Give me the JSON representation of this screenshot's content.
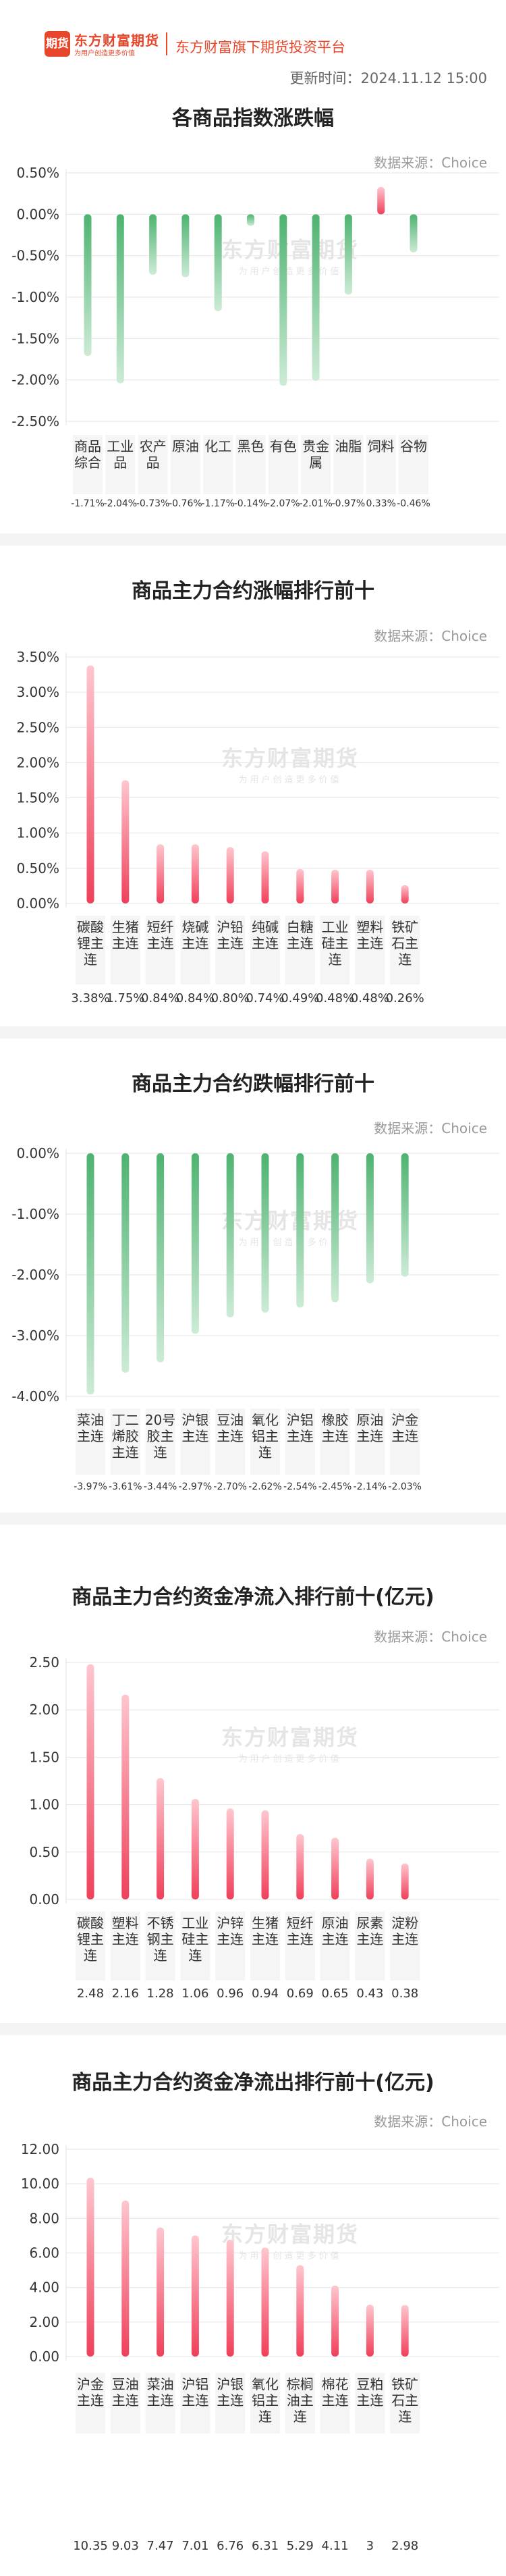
{
  "header": {
    "logo_mark": "期货",
    "logo_name": "东方财富期货",
    "logo_slogan": "为用户创造更多价值",
    "platform": "东方财富旗下期货投资平台",
    "update_time": "更新时间：2024.11.12 15:00"
  },
  "watermark": {
    "name": "东方财富期货",
    "slogan": "为用户创造更多价值"
  },
  "colors": {
    "brand": "#e8462a",
    "up": "#f0405a",
    "down": "#4db370",
    "grid": "#e6e6e6",
    "divider": "#f4f4f4"
  },
  "sections": [
    {
      "title": "各商品指数涨跌幅",
      "source": "数据来源：Choice"
    },
    {
      "title": "商品主力合约涨幅排行前十",
      "source": "数据来源：Choice"
    },
    {
      "title": "商品主力合约跌幅排行前十",
      "source": "数据来源：Choice"
    },
    {
      "title": "商品主力合约资金净流入排行前十(亿元)",
      "source": "数据来源：Choice"
    },
    {
      "title": "商品主力合约资金净流出排行前十(亿元)",
      "source": "数据来源：Choice"
    }
  ],
  "chart_data": [
    {
      "type": "bar",
      "title": "各商品指数涨跌幅",
      "categories": [
        [
          "商品",
          "综合"
        ],
        [
          "工业",
          "品"
        ],
        [
          "农产",
          "品"
        ],
        [
          "原油"
        ],
        [
          "化工"
        ],
        [
          "黑色"
        ],
        [
          "有色"
        ],
        [
          "贵金",
          "属"
        ],
        [
          "油脂"
        ],
        [
          "饲料"
        ],
        [
          "谷物"
        ]
      ],
      "values": [
        -1.71,
        -2.04,
        -0.73,
        -0.76,
        -1.17,
        -0.14,
        -2.07,
        -2.01,
        -0.97,
        0.33,
        -0.46
      ],
      "value_labels": [
        "-1.71%",
        "-2.04%",
        "-0.73%",
        "-0.76%",
        "-1.17%",
        "-0.14%",
        "-2.07%",
        "-2.01%",
        "-0.97%",
        "0.33%",
        "-0.46%"
      ],
      "yticks": [
        "0.50%",
        "0.00%",
        "-0.50%",
        "-1.00%",
        "-1.50%",
        "-2.00%",
        "-2.50%"
      ],
      "ylim": [
        -2.5,
        0.5
      ],
      "grid": true
    },
    {
      "type": "bar",
      "title": "商品主力合约涨幅排行前十",
      "categories": [
        [
          "碳酸",
          "锂主",
          "连"
        ],
        [
          "生猪",
          "主连"
        ],
        [
          "短纤",
          "主连"
        ],
        [
          "烧碱",
          "主连"
        ],
        [
          "沪铅",
          "主连"
        ],
        [
          "纯碱",
          "主连"
        ],
        [
          "白糖",
          "主连"
        ],
        [
          "工业",
          "硅主",
          "连"
        ],
        [
          "塑料",
          "主连"
        ],
        [
          "铁矿",
          "石主",
          "连"
        ]
      ],
      "values": [
        3.38,
        1.75,
        0.84,
        0.84,
        0.8,
        0.74,
        0.49,
        0.48,
        0.48,
        0.26
      ],
      "value_labels": [
        "3.38%",
        "1.75%",
        "0.84%",
        "0.84%",
        "0.80%",
        "0.74%",
        "0.49%",
        "0.48%",
        "0.48%",
        "0.26%"
      ],
      "yticks": [
        "3.50%",
        "3.00%",
        "2.50%",
        "2.00%",
        "1.50%",
        "1.00%",
        "0.50%",
        "0.00%"
      ],
      "ylim": [
        0,
        3.5
      ],
      "grid": true
    },
    {
      "type": "bar",
      "title": "商品主力合约跌幅排行前十",
      "categories": [
        [
          "菜油",
          "主连"
        ],
        [
          "丁二",
          "烯胶",
          "主连"
        ],
        [
          "20号",
          "胶主",
          "连"
        ],
        [
          "沪银",
          "主连"
        ],
        [
          "豆油",
          "主连"
        ],
        [
          "氧化",
          "铝主",
          "连"
        ],
        [
          "沪铝",
          "主连"
        ],
        [
          "橡胶",
          "主连"
        ],
        [
          "原油",
          "主连"
        ],
        [
          "沪金",
          "主连"
        ]
      ],
      "values": [
        -3.97,
        -3.61,
        -3.44,
        -2.97,
        -2.7,
        -2.62,
        -2.54,
        -2.45,
        -2.14,
        -2.03
      ],
      "value_labels": [
        "-3.97%",
        "-3.61%",
        "-3.44%",
        "-2.97%",
        "-2.70%",
        "-2.62%",
        "-2.54%",
        "-2.45%",
        "-2.14%",
        "-2.03%"
      ],
      "yticks": [
        "0.00%",
        "-1.00%",
        "-2.00%",
        "-3.00%",
        "-4.00%"
      ],
      "ylim": [
        -4,
        0
      ],
      "grid": true
    },
    {
      "type": "bar",
      "title": "商品主力合约资金净流入排行前十(亿元)",
      "categories": [
        [
          "碳酸",
          "锂主",
          "连"
        ],
        [
          "塑料",
          "主连"
        ],
        [
          "不锈",
          "钢主",
          "连"
        ],
        [
          "工业",
          "硅主",
          "连"
        ],
        [
          "沪锌",
          "主连"
        ],
        [
          "生猪",
          "主连"
        ],
        [
          "短纤",
          "主连"
        ],
        [
          "原油",
          "主连"
        ],
        [
          "尿素",
          "主连"
        ],
        [
          "淀粉",
          "主连"
        ]
      ],
      "values": [
        2.48,
        2.16,
        1.28,
        1.06,
        0.96,
        0.94,
        0.69,
        0.65,
        0.43,
        0.38
      ],
      "value_labels": [
        "2.48",
        "2.16",
        "1.28",
        "1.06",
        "0.96",
        "0.94",
        "0.69",
        "0.65",
        "0.43",
        "0.38"
      ],
      "yticks": [
        "2.50",
        "2.00",
        "1.50",
        "1.00",
        "0.50",
        "0.00"
      ],
      "ylim": [
        0,
        2.5
      ],
      "grid": true
    },
    {
      "type": "bar",
      "title": "商品主力合约资金净流出排行前十(亿元)",
      "categories": [
        [
          "沪金",
          "主连"
        ],
        [
          "豆油",
          "主连"
        ],
        [
          "菜油",
          "主连"
        ],
        [
          "沪铝",
          "主连"
        ],
        [
          "沪银",
          "主连"
        ],
        [
          "氧化",
          "铝主",
          "连"
        ],
        [
          "棕榈",
          "油主",
          "连"
        ],
        [
          "棉花",
          "主连"
        ],
        [
          "豆粕",
          "主连"
        ],
        [
          "铁矿",
          "石主",
          "连"
        ]
      ],
      "values": [
        10.35,
        9.03,
        7.47,
        7.01,
        6.76,
        6.31,
        5.29,
        4.11,
        3,
        2.98
      ],
      "value_labels": [
        "10.35",
        "9.03",
        "7.47",
        "7.01",
        "6.76",
        "6.31",
        "5.29",
        "4.11",
        "3",
        "2.98"
      ],
      "yticks": [
        "12.00",
        "10.00",
        "8.00",
        "6.00",
        "4.00",
        "2.00",
        "0.00"
      ],
      "ylim": [
        0,
        12
      ],
      "grid": true
    }
  ]
}
